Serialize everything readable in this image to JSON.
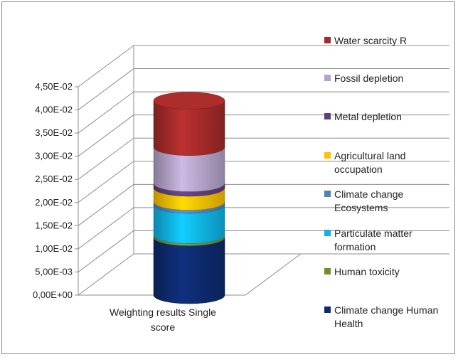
{
  "chart_data": {
    "type": "bar",
    "subtype": "stacked-3d-cylinder",
    "title": "",
    "xlabel": "",
    "ylabel": "",
    "categories": [
      "Weighting results Single score"
    ],
    "y_ticks": [
      "0,00E+00",
      "5,00E-03",
      "1,00E-02",
      "1,50E-02",
      "2,00E-02",
      "2,50E-02",
      "3,00E-02",
      "3,50E-02",
      "4,00E-02",
      "4,50E-02"
    ],
    "ylim": [
      0,
      0.045
    ],
    "legend_position": "right",
    "grid": true,
    "series": [
      {
        "name": "Climate change Human Health",
        "values": [
          0.0125
        ],
        "color": "#0e2a6e"
      },
      {
        "name": "Human toxicity",
        "values": [
          0.0005
        ],
        "color": "#6f8f2e"
      },
      {
        "name": "Particulate matter formation",
        "values": [
          0.0065
        ],
        "color": "#0fb4e6"
      },
      {
        "name": "Climate change Ecosystems",
        "values": [
          0.0007
        ],
        "color": "#4f81bd"
      },
      {
        "name": "Agricultural land occupation",
        "values": [
          0.003
        ],
        "color": "#ffc000"
      },
      {
        "name": "Metal depletion",
        "values": [
          0.001
        ],
        "color": "#5f3f7a"
      },
      {
        "name": "Fossil depletion",
        "values": [
          0.0078
        ],
        "color": "#b3a2c7"
      },
      {
        "name": "Water scarcity R",
        "values": [
          0.01
        ],
        "color": "#a52a2a"
      }
    ]
  }
}
